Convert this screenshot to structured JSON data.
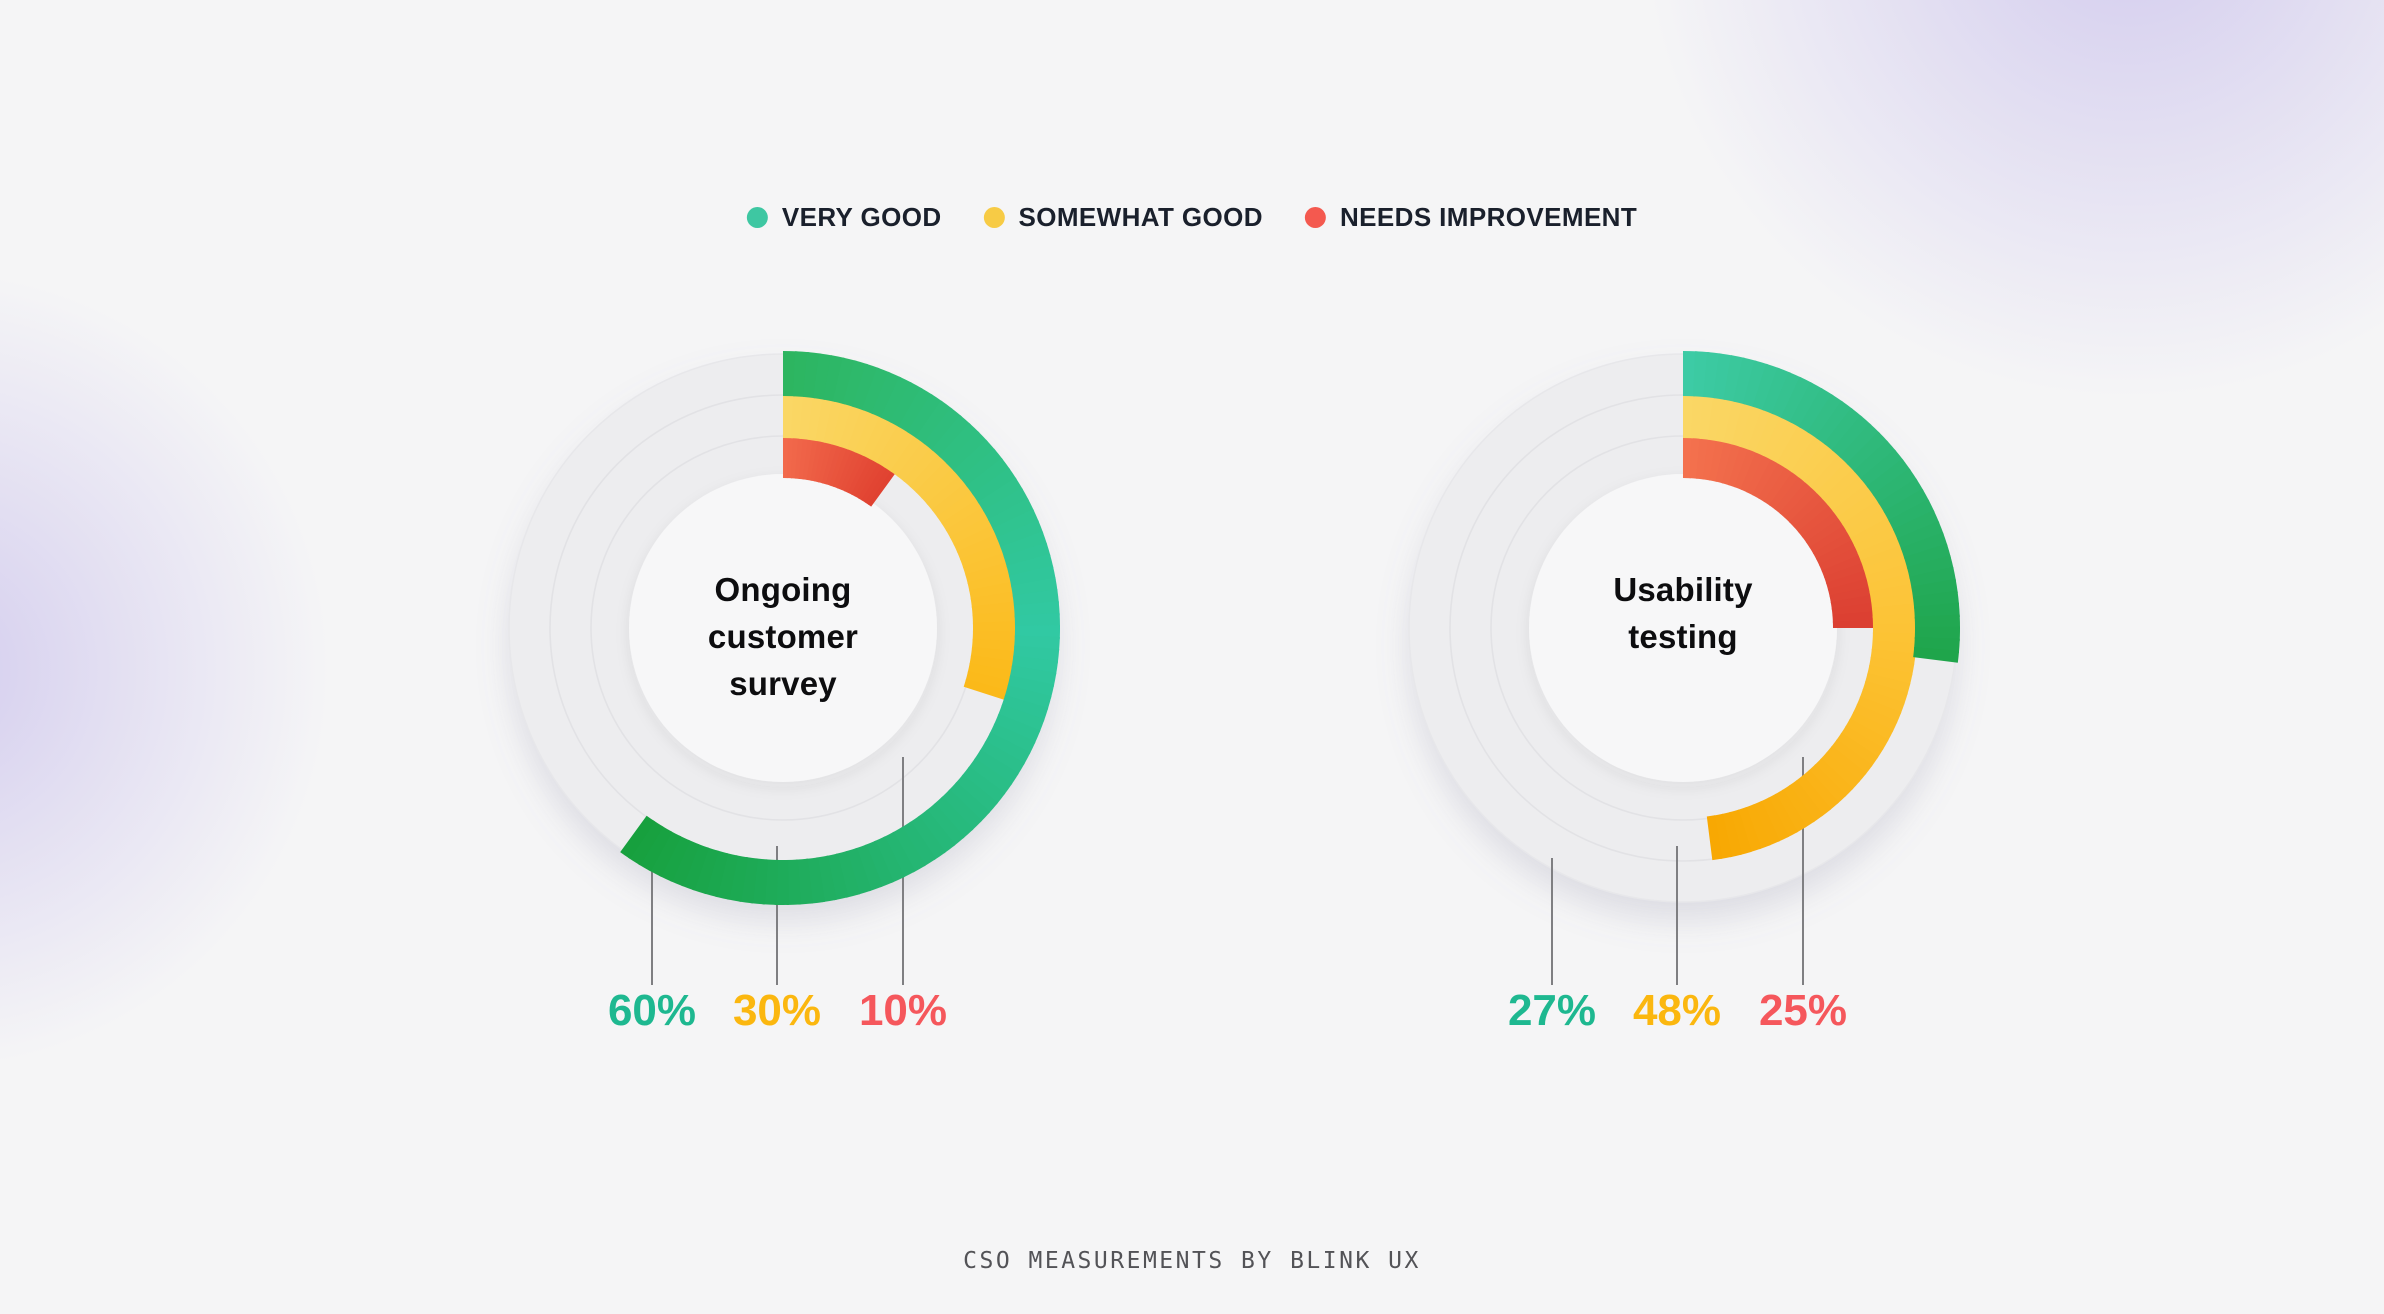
{
  "legend": {
    "items": [
      {
        "label": "VERY GOOD",
        "color": "#3EC7A2"
      },
      {
        "label": "SOMEWHAT GOOD",
        "color": "#F7CB45"
      },
      {
        "label": "NEEDS IMPROVEMENT",
        "color": "#F4594F"
      }
    ]
  },
  "footer": {
    "credit": "CSO MEASUREMENTS BY BLINK UX"
  },
  "chart_data": [
    {
      "type": "donut",
      "title": "Ongoing customer survey",
      "title_lines": [
        "Ongoing",
        "customer",
        "survey"
      ],
      "categories": [
        "VERY GOOD",
        "SOMEWHAT GOOD",
        "NEEDS IMPROVEMENT"
      ],
      "values": [
        60,
        30,
        10
      ],
      "labels": [
        "60%",
        "30%",
        "10%"
      ],
      "label_colors": [
        "#1EB890",
        "#FBB70F",
        "#F5575C"
      ],
      "start_angle_deg": 0,
      "direction": "clockwise",
      "arc_gradients": [
        {
          "stops": [
            "#2DB55F",
            "#31C9A3",
            "#17A03D"
          ],
          "pos": [
            0,
            0.42,
            1
          ]
        },
        {
          "stops": [
            "#FAD766",
            "#FBB918"
          ],
          "pos": [
            0,
            1
          ]
        },
        {
          "stops": [
            "#F26A4C",
            "#E04130"
          ],
          "pos": [
            0,
            1
          ]
        }
      ]
    },
    {
      "type": "donut",
      "title": "Usability testing",
      "title_lines": [
        "Usability",
        "testing"
      ],
      "categories": [
        "VERY GOOD",
        "SOMEWHAT GOOD",
        "NEEDS IMPROVEMENT"
      ],
      "values": [
        27,
        48,
        25
      ],
      "labels": [
        "27%",
        "48%",
        "25%"
      ],
      "label_colors": [
        "#1EB890",
        "#FBB70F",
        "#F5575C"
      ],
      "start_angle_deg": 0,
      "direction": "clockwise",
      "arc_gradients": [
        {
          "stops": [
            "#3DCCA6",
            "#1FA44A"
          ],
          "pos": [
            0,
            1
          ]
        },
        {
          "stops": [
            "#FAD766",
            "#FCC233",
            "#F8A802"
          ],
          "pos": [
            0,
            0.55,
            1
          ]
        },
        {
          "stops": [
            "#F4724E",
            "#DB3E31"
          ],
          "pos": [
            0,
            1
          ]
        }
      ]
    }
  ]
}
